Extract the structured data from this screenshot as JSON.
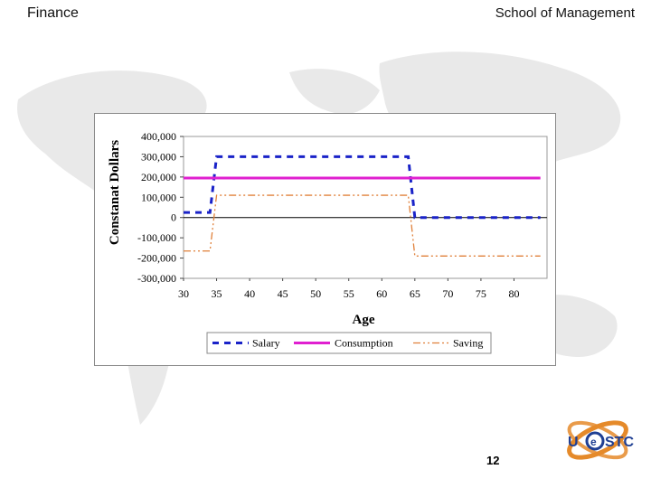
{
  "header": {
    "left_title": "Finance",
    "right_title": "School of Management"
  },
  "page_number": "12",
  "logo": {
    "text": "UESTC"
  },
  "colors": {
    "salary": "#1a23c8",
    "consumption": "#e020d0",
    "saving": "#e0803a",
    "zero_line": "#000000"
  },
  "chart_data": {
    "type": "line",
    "xlabel": "Age",
    "ylabel": "Constanat Dollars",
    "xlim": [
      30,
      85
    ],
    "ylim": [
      -300000,
      400000
    ],
    "x_ticks": [
      30,
      35,
      40,
      45,
      50,
      55,
      60,
      65,
      70,
      75,
      80
    ],
    "x_tick_labels": [
      "30",
      "35",
      "40",
      "45",
      "50",
      "55",
      "60",
      "65",
      "70",
      "75",
      "80"
    ],
    "y_ticks": [
      400000,
      300000,
      200000,
      100000,
      0,
      -100000,
      -200000,
      -300000
    ],
    "y_tick_labels": [
      "400,000",
      "300,000",
      "200,000",
      "100,000",
      "0",
      "-100,000",
      "-200,000",
      "-300,000"
    ],
    "legend_position": "bottom",
    "series": [
      {
        "name": "Salary",
        "style": "dashed",
        "x": [
          30,
          34,
          35,
          64,
          65,
          84
        ],
        "values": [
          25000,
          25000,
          300000,
          300000,
          0,
          0
        ]
      },
      {
        "name": "Consumption",
        "style": "solid",
        "x": [
          30,
          84
        ],
        "values": [
          195000,
          195000
        ]
      },
      {
        "name": "Saving",
        "style": "dashdot",
        "x": [
          30,
          34,
          35,
          64,
          65,
          84
        ],
        "values": [
          -165000,
          -165000,
          110000,
          110000,
          -190000,
          -190000
        ]
      }
    ]
  }
}
